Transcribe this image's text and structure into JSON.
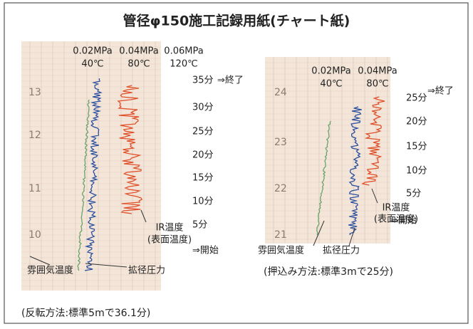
{
  "title": "管径φ150施工記録用紙(チャート紙)",
  "panels": [
    {
      "scale_headers": [
        {
          "pressure": "0.02MPa",
          "temperature": "40℃"
        },
        {
          "pressure": "0.04MPa",
          "temperature": "80℃"
        },
        {
          "pressure": "0.06MPa",
          "temperature": "120℃"
        }
      ],
      "time_labels": [
        "35分",
        "30分",
        "25分",
        "20分",
        "15分",
        "10分",
        "5分"
      ],
      "end_label": "⇒終了",
      "start_label": "⇒開始",
      "chart_numbers": [
        "13",
        "12",
        "11",
        "10"
      ],
      "ir_label": [
        "IR温度",
        "(表面温度)"
      ],
      "ambient_label": "雰囲気温度",
      "pressure_label": "拡径圧力",
      "caption": "(反転方法:標準5mで36.1分)"
    },
    {
      "scale_headers": [
        {
          "pressure": "0.02MPa",
          "temperature": "40℃"
        },
        {
          "pressure": "0.04MPa",
          "temperature": "80℃"
        }
      ],
      "time_labels": [
        "25分",
        "20分",
        "15分",
        "10分",
        "5分"
      ],
      "end_label": "⇒終了",
      "start_label": "⇒開始",
      "chart_numbers": [
        "24",
        "23",
        "22",
        "21"
      ],
      "ir_label": [
        "IR温度",
        "(表面温度)"
      ],
      "ambient_label": "雰囲気温度",
      "pressure_label": "拡径圧力",
      "caption": "(押込み方法:標準3mで25分)"
    }
  ]
}
